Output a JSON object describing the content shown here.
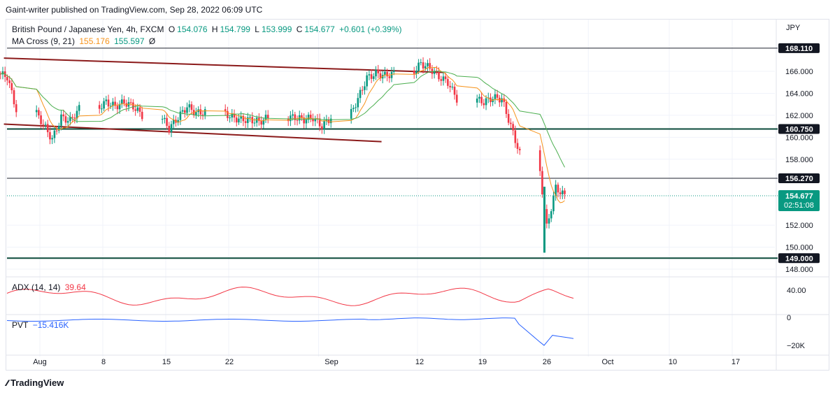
{
  "publish_line": "Gaint-writer published on TradingView.com, Sep 28, 2022 06:09 UTC",
  "brand": "TradingView",
  "currency": "JPY",
  "colors": {
    "up": "#089981",
    "down": "#f23645",
    "ma_fast": "#f7931a",
    "ma_slow": "#4caf50",
    "channel": "#8b1a1a",
    "level": "#0b4a3a",
    "adx": "#f23645",
    "pvt": "#2962ff",
    "last_price": "#089981"
  },
  "legend": {
    "symbol": "British Pound / Japanese Yen, 4h, FXCM",
    "o_label": "O",
    "o": "154.076",
    "h_label": "H",
    "h": "154.799",
    "l_label": "L",
    "l": "153.999",
    "c_label": "C",
    "c": "154.677",
    "change": "+0.601 (+0.39%)",
    "ma_label": "MA Cross (9, 21)",
    "ma_fast": "155.176",
    "ma_slow": "155.597",
    "ma_symbol": "Ø",
    "adx_label": "ADX (14, 14)",
    "adx_value": "39.64",
    "pvt_label": "PVT",
    "pvt_value": "−15.416K"
  },
  "price_axis": {
    "ticks": [
      "166.000",
      "164.000",
      "162.000",
      "160.000",
      "158.000",
      "152.000",
      "150.000",
      "148.000"
    ],
    "tick_values": [
      166,
      164,
      162,
      160,
      158,
      152,
      150,
      148
    ]
  },
  "price_levels": [
    {
      "label": "168.110",
      "value": 168.11,
      "kind": "resistance"
    },
    {
      "label": "160.750",
      "value": 160.75,
      "kind": "support"
    },
    {
      "label": "156.270",
      "value": 156.27,
      "kind": "resistance"
    },
    {
      "label": "149.000",
      "value": 149.0,
      "kind": "support"
    }
  ],
  "last_price": {
    "value": "154.677",
    "countdown": "02:51:08"
  },
  "adx_axis": {
    "ticks": [
      "40.00"
    ]
  },
  "pvt_axis": {
    "ticks": [
      "0",
      "−20K"
    ]
  },
  "time_axis": {
    "labels": [
      "Aug",
      "8",
      "15",
      "22",
      "Sep",
      "12",
      "19",
      "26",
      "Oct",
      "10",
      "17"
    ]
  },
  "chart_data": {
    "type": "candlestick",
    "symbol": "GBPJPY",
    "timeframe": "4h",
    "ylim": [
      147.5,
      169
    ],
    "notes_series_from_visual_estimate": true,
    "daily_closes": [
      {
        "date": "Jul 28",
        "close": 165.5
      },
      {
        "date": "Jul 29",
        "close": 162.5
      },
      {
        "date": "Aug 1",
        "close": 161.2
      },
      {
        "date": "Aug 2",
        "close": 159.8
      },
      {
        "date": "Aug 3",
        "close": 161.8
      },
      {
        "date": "Aug 4",
        "close": 161.5
      },
      {
        "date": "Aug 5",
        "close": 162.6
      },
      {
        "date": "Aug 8",
        "close": 163.2
      },
      {
        "date": "Aug 9",
        "close": 162.8
      },
      {
        "date": "Aug 10",
        "close": 163.2
      },
      {
        "date": "Aug 11",
        "close": 162.8
      },
      {
        "date": "Aug 12",
        "close": 162.0
      },
      {
        "date": "Aug 15",
        "close": 160.8
      },
      {
        "date": "Aug 16",
        "close": 161.8
      },
      {
        "date": "Aug 17",
        "close": 162.8
      },
      {
        "date": "Aug 18",
        "close": 162.2
      },
      {
        "date": "Aug 19",
        "close": 162.3
      },
      {
        "date": "Aug 22",
        "close": 161.8
      },
      {
        "date": "Aug 23",
        "close": 161.6
      },
      {
        "date": "Aug 24",
        "close": 161.6
      },
      {
        "date": "Aug 25",
        "close": 161.4
      },
      {
        "date": "Aug 26",
        "close": 161.8
      },
      {
        "date": "Aug 29",
        "close": 161.8
      },
      {
        "date": "Aug 30",
        "close": 161.6
      },
      {
        "date": "Aug 31",
        "close": 161.8
      },
      {
        "date": "Sep 1",
        "close": 161.0
      },
      {
        "date": "Sep 2",
        "close": 161.8
      },
      {
        "date": "Sep 5",
        "close": 163.5
      },
      {
        "date": "Sep 6",
        "close": 165.4
      },
      {
        "date": "Sep 7",
        "close": 165.8
      },
      {
        "date": "Sep 8",
        "close": 165.6
      },
      {
        "date": "Sep 9",
        "close": 165.8
      },
      {
        "date": "Sep 12",
        "close": 166.7
      },
      {
        "date": "Sep 13",
        "close": 166.3
      },
      {
        "date": "Sep 14",
        "close": 165.5
      },
      {
        "date": "Sep 15",
        "close": 165.0
      },
      {
        "date": "Sep 16",
        "close": 163.5
      },
      {
        "date": "Sep 19",
        "close": 163.2
      },
      {
        "date": "Sep 20",
        "close": 163.6
      },
      {
        "date": "Sep 21",
        "close": 163.5
      },
      {
        "date": "Sep 22",
        "close": 161.0
      },
      {
        "date": "Sep 23",
        "close": 158.5
      },
      {
        "date": "Sep 26",
        "close": 151.8
      },
      {
        "date": "Sep 27",
        "close": 155.4
      },
      {
        "date": "Sep 28",
        "close": 154.677
      }
    ],
    "channel_lines": [
      {
        "from": {
          "date": "Jul 28",
          "value": 167.2
        },
        "to": {
          "date": "Sep 15",
          "value": 165.9
        }
      },
      {
        "from": {
          "date": "Jul 28",
          "value": 161.2
        },
        "to": {
          "date": "Sep 8",
          "value": 159.6
        }
      }
    ]
  }
}
